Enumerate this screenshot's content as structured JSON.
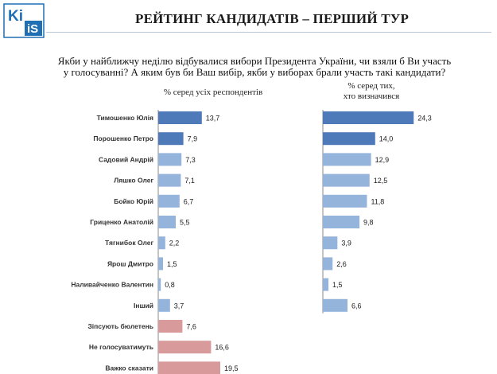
{
  "logo": {
    "text": "KIIS"
  },
  "title": "РЕЙТИНГ КАНДИДАТІВ – ПЕРШИЙ ТУР",
  "question": "Якби у найближчу неділю відбувалися вибори Президента України, чи взяли б Ви участь у голосуванні? А яким був би Ваш вибір, якби у виборах брали участь такі кандидати?",
  "colors": {
    "highlight": "#4f7ab9",
    "other": "#95b4dc",
    "undecided": "#d99a9b",
    "axis": "#8a8a8a"
  },
  "chart_data": [
    {
      "type": "bar",
      "orientation": "horizontal",
      "title": "% серед усіх респондентів",
      "categories": [
        "Тимошенко Юлія",
        "Порошенко Петро",
        "Садовий Андрій",
        "Ляшко Олег",
        "Бойко Юрій",
        "Гриценко Анатолій",
        "Тягнибок Олег",
        "Ярош Дмитро",
        "Наливайченко Валентин",
        "Інший",
        "Зіпсують бюлетень",
        "Не голосуватимуть",
        "Важко сказати"
      ],
      "values": [
        13.7,
        7.9,
        7.3,
        7.1,
        6.7,
        5.5,
        2.2,
        1.5,
        0.8,
        3.7,
        7.6,
        16.6,
        19.5
      ],
      "labels": [
        "13,7",
        "7,9",
        "7,3",
        "7,1",
        "6,7",
        "5,5",
        "2,2",
        "1,5",
        "0,8",
        "3,7",
        "7,6",
        "16,6",
        "19,5"
      ],
      "bar_colors": [
        "highlight",
        "highlight",
        "other",
        "other",
        "other",
        "other",
        "other",
        "other",
        "other",
        "other",
        "undecided",
        "undecided",
        "undecided"
      ]
    },
    {
      "type": "bar",
      "orientation": "horizontal",
      "title_lines": [
        "% серед тих,",
        "хто визначився"
      ],
      "categories": [
        "Тимошенко Юлія",
        "Порошенко Петро",
        "Садовий Андрій",
        "Ляшко Олег",
        "Бойко Юрій",
        "Гриценко Анатолій",
        "Тягнибок Олег",
        "Ярош Дмитро",
        "Наливайченко Валентин",
        "Інший"
      ],
      "values": [
        24.3,
        14.0,
        12.9,
        12.5,
        11.8,
        9.8,
        3.9,
        2.6,
        1.5,
        6.6
      ],
      "labels": [
        "24,3",
        "14,0",
        "12,9",
        "12,5",
        "11,8",
        "9,8",
        "3,9",
        "2,6",
        "1,5",
        "6,6"
      ],
      "bar_colors": [
        "highlight",
        "highlight",
        "other",
        "other",
        "other",
        "other",
        "other",
        "other",
        "other",
        "other"
      ]
    }
  ]
}
